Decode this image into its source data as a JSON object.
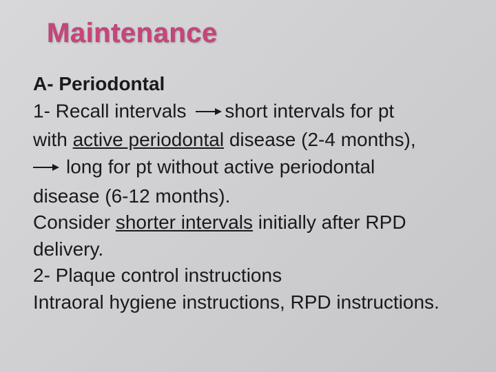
{
  "slide": {
    "title": "Maintenance",
    "title_color": "#c9447a",
    "background_gradient": [
      "#d8d8da",
      "#cfcfd2",
      "#c6c6c9"
    ],
    "body_color": "#1a1a1a",
    "title_fontsize": 40,
    "body_fontsize": 28,
    "subheading": "A- Periodontal",
    "line1_a": "1- Recall intervals",
    "line1_b": "short  intervals for pt",
    "line2_a": "with ",
    "line2_ul": "active periodontal",
    "line2_b": " disease (2-4 months),",
    "line3": "long for pt without active periodontal",
    "line4": "disease (6-12 months).",
    "line5_a": "Consider ",
    "line5_ul": "shorter intervals",
    "line5_b": " initially after RPD",
    "line6": "delivery.",
    "line7": "2- Plaque control instructions",
    "line8": "Intraoral hygiene instructions, RPD instructions."
  }
}
